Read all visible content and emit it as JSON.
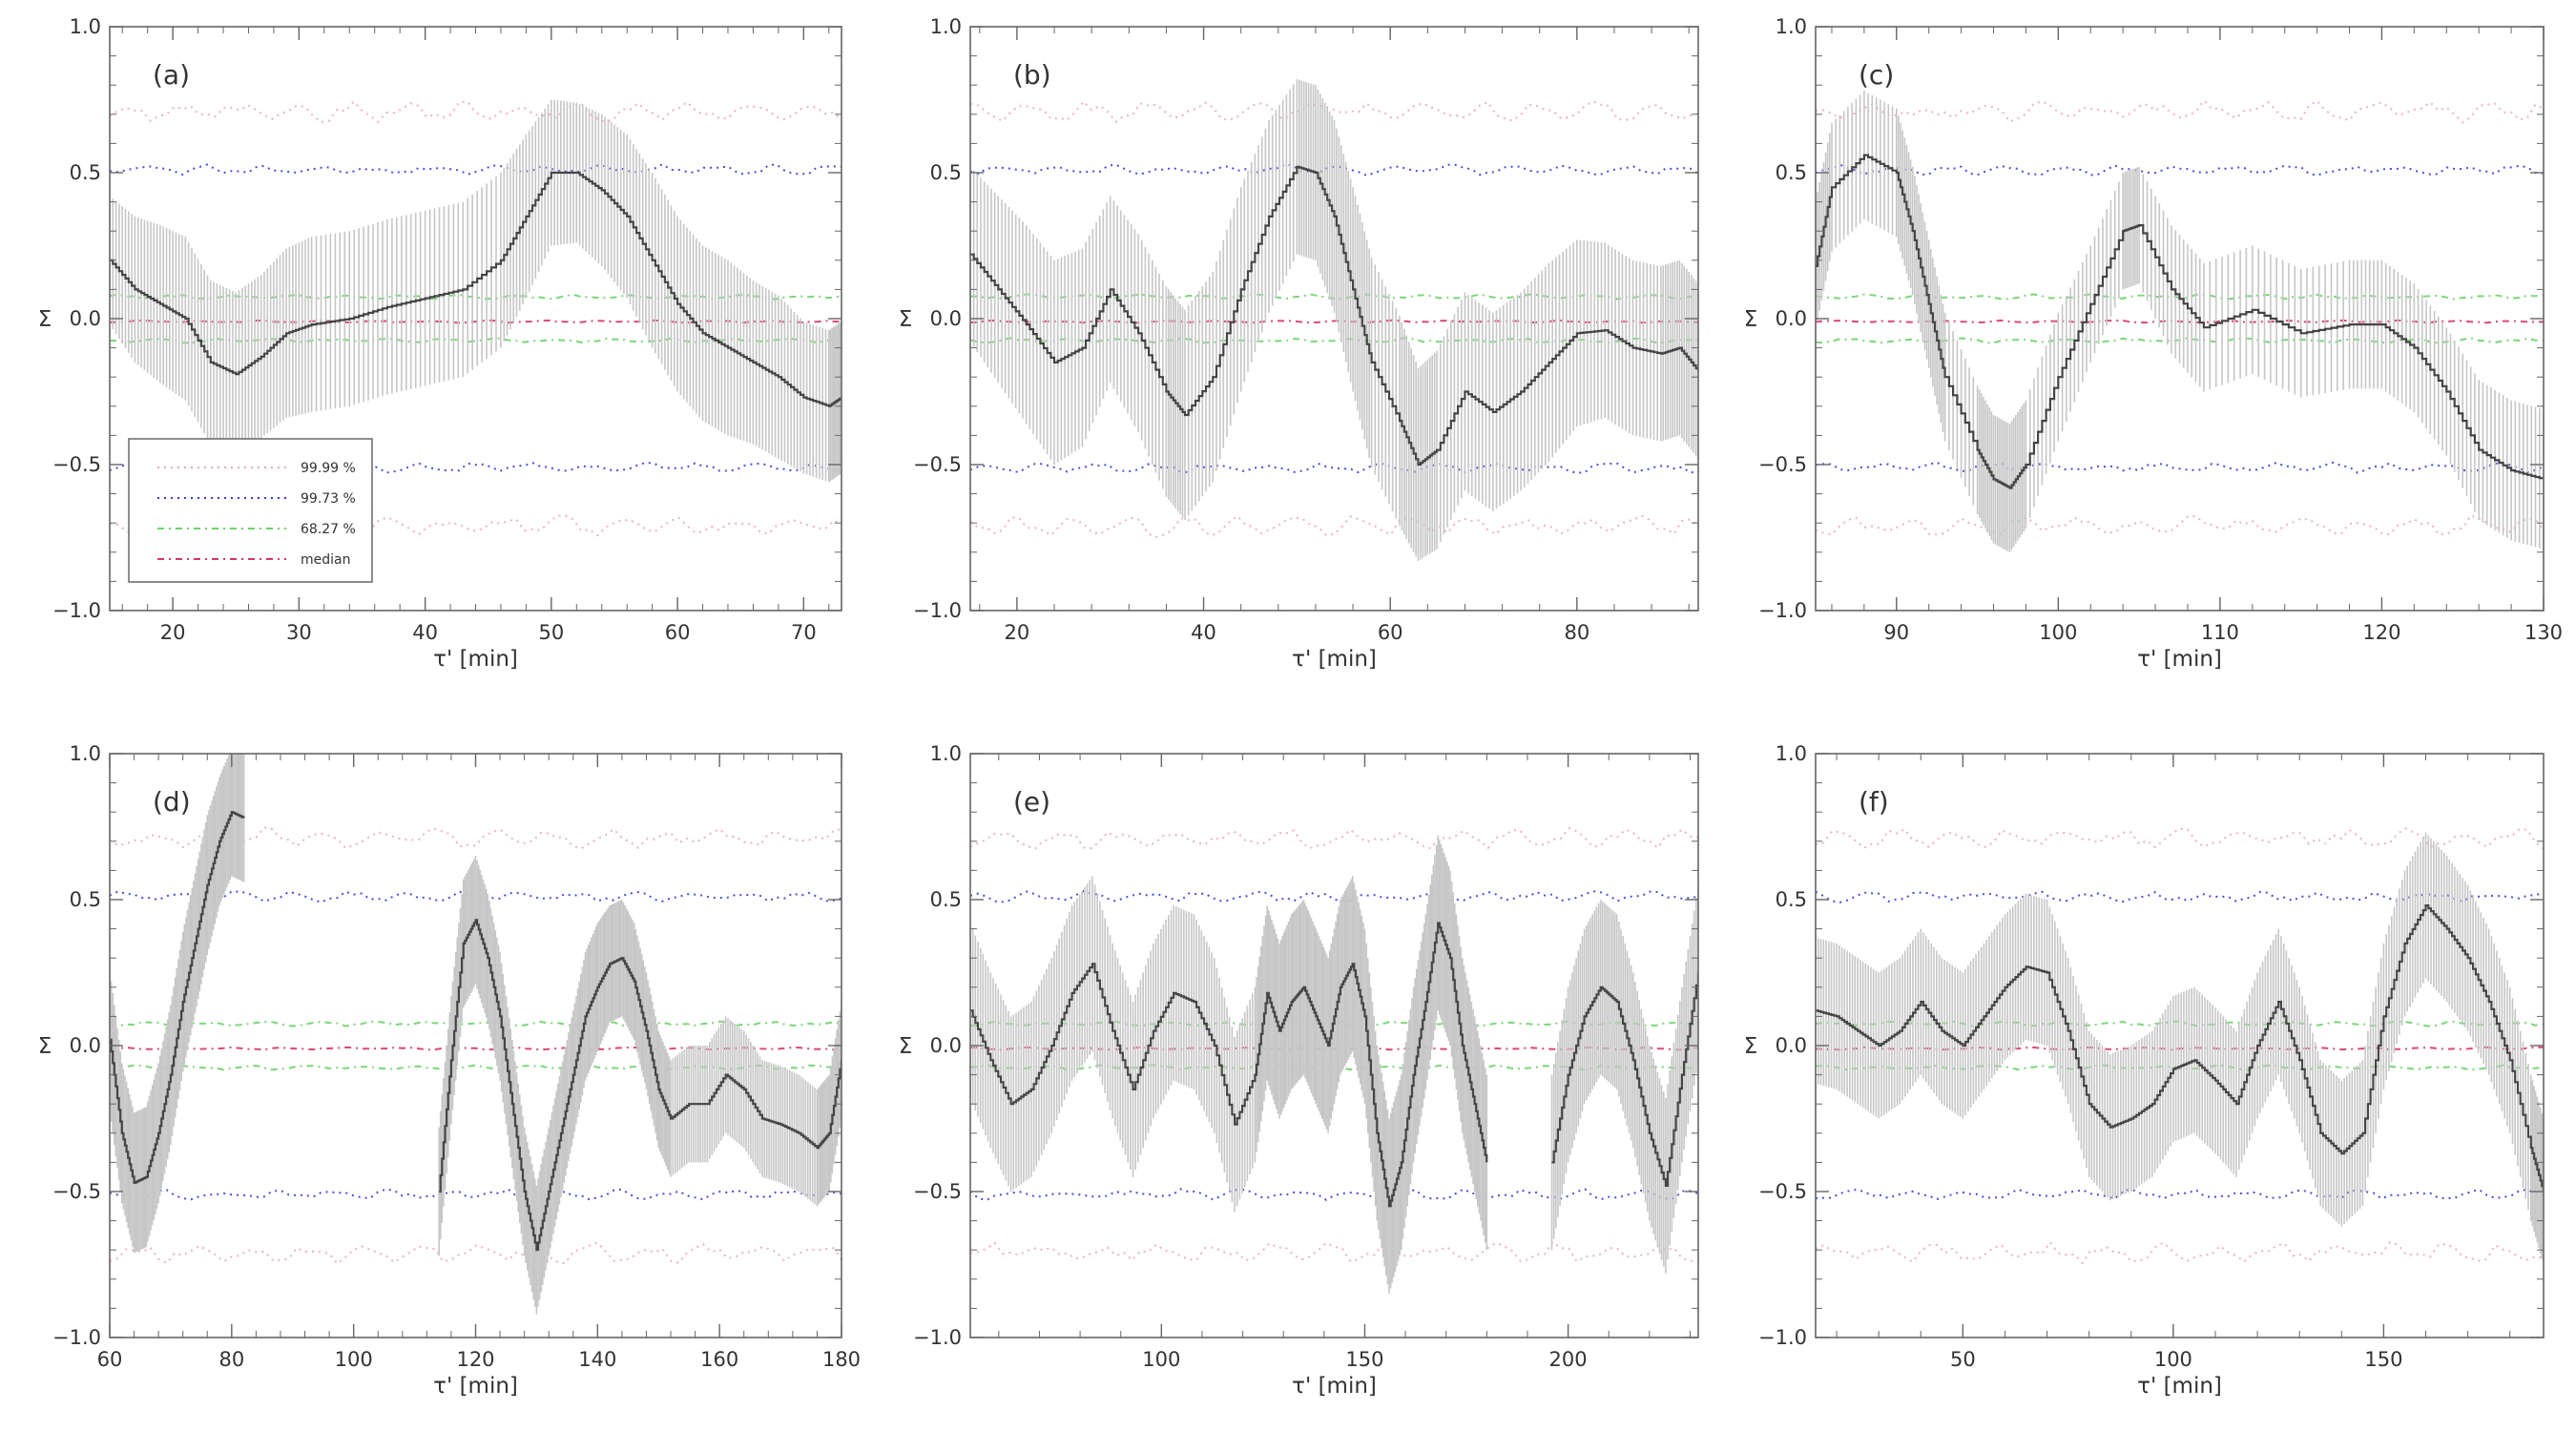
{
  "colors": {
    "signal": "#444444",
    "error_bars": "#c6c6c6",
    "conf_9999": "#e9a6cc",
    "conf_9973": "#3a3ad2",
    "conf_6827": "#6bd36b",
    "median": "#d9336a",
    "axis": "#666666"
  },
  "chart_data": [
    {
      "type": "line",
      "panel_label": "(a)",
      "xlabel": "τ' [min]",
      "ylabel": "Σ",
      "xlim": [
        15,
        73
      ],
      "ylim": [
        -1.0,
        1.0
      ],
      "xticks": [
        20,
        30,
        40,
        50,
        60,
        70
      ],
      "yticks": [
        -1.0,
        -0.5,
        0.0,
        0.5,
        1.0
      ],
      "ytick_labels": [
        "−1.0",
        "−0.5",
        "0.0",
        "0.5",
        "1.0"
      ],
      "legend": {
        "placement": "bottom-left",
        "entries": [
          "99.99 %",
          "99.73 %",
          "68.27 %",
          "median"
        ]
      },
      "confidence_levels": {
        "p9999": 0.71,
        "p9973": 0.51,
        "p6827": 0.075,
        "median": -0.01
      },
      "series": {
        "x": [
          15,
          17,
          19,
          21,
          23,
          25,
          27,
          29,
          31,
          34,
          37,
          40,
          43,
          46,
          48,
          50,
          52,
          54,
          56,
          58,
          60,
          62,
          64,
          66,
          68,
          70,
          72,
          73
        ],
        "y": [
          0.2,
          0.1,
          0.05,
          0.0,
          -0.15,
          -0.19,
          -0.13,
          -0.05,
          -0.02,
          0.0,
          0.04,
          0.07,
          0.1,
          0.2,
          0.35,
          0.5,
          0.5,
          0.44,
          0.35,
          0.2,
          0.05,
          -0.05,
          -0.1,
          -0.15,
          -0.2,
          -0.27,
          -0.3,
          -0.27
        ],
        "err": [
          0.22,
          0.25,
          0.27,
          0.28,
          0.28,
          0.28,
          0.28,
          0.29,
          0.3,
          0.3,
          0.3,
          0.3,
          0.3,
          0.3,
          0.28,
          0.25,
          0.24,
          0.26,
          0.28,
          0.3,
          0.3,
          0.3,
          0.3,
          0.28,
          0.28,
          0.26,
          0.26,
          0.26
        ]
      }
    },
    {
      "type": "line",
      "panel_label": "(b)",
      "xlabel": "τ' [min]",
      "ylabel": "Σ",
      "xlim": [
        15,
        93
      ],
      "ylim": [
        -1.0,
        1.0
      ],
      "xticks": [
        20,
        40,
        60,
        80
      ],
      "yticks": [
        -1.0,
        -0.5,
        0.0,
        0.5,
        1.0
      ],
      "ytick_labels": [
        "−1.0",
        "−0.5",
        "0.0",
        "0.5",
        "1.0"
      ],
      "confidence_levels": {
        "p9999": 0.71,
        "p9973": 0.51,
        "p6827": 0.075,
        "median": -0.01
      },
      "series": {
        "x": [
          15,
          18,
          21,
          24,
          27,
          30,
          33,
          36,
          38,
          41,
          44,
          47,
          50,
          52,
          54,
          56,
          58,
          61,
          63,
          65,
          68,
          71,
          74,
          77,
          80,
          83,
          86,
          89,
          91,
          93
        ],
        "y": [
          0.22,
          0.1,
          -0.02,
          -0.15,
          -0.1,
          0.1,
          -0.05,
          -0.25,
          -0.33,
          -0.2,
          0.1,
          0.35,
          0.52,
          0.5,
          0.35,
          0.1,
          -0.15,
          -0.35,
          -0.5,
          -0.45,
          -0.25,
          -0.32,
          -0.25,
          -0.15,
          -0.05,
          -0.04,
          -0.1,
          -0.12,
          -0.1,
          -0.18
        ],
        "err": [
          0.3,
          0.32,
          0.34,
          0.35,
          0.34,
          0.32,
          0.34,
          0.36,
          0.36,
          0.36,
          0.35,
          0.33,
          0.3,
          0.3,
          0.33,
          0.35,
          0.36,
          0.36,
          0.33,
          0.34,
          0.34,
          0.34,
          0.34,
          0.34,
          0.32,
          0.3,
          0.3,
          0.3,
          0.3,
          0.3
        ]
      }
    },
    {
      "type": "line",
      "panel_label": "(c)",
      "xlabel": "τ' [min]",
      "ylabel": "Σ",
      "xlim": [
        85,
        130
      ],
      "ylim": [
        -1.0,
        1.0
      ],
      "xticks": [
        90,
        100,
        110,
        120,
        130
      ],
      "yticks": [
        -1.0,
        -0.5,
        0.0,
        0.5,
        1.0
      ],
      "ytick_labels": [
        "−1.0",
        "−0.5",
        "0.0",
        "0.5",
        "1.0"
      ],
      "confidence_levels": {
        "p9999": 0.71,
        "p9973": 0.51,
        "p6827": 0.075,
        "median": -0.01
      },
      "series": {
        "x": [
          85,
          86,
          88,
          90,
          91,
          92,
          93,
          95,
          96,
          97,
          98,
          100,
          102,
          104,
          105,
          107,
          109,
          112,
          115,
          118,
          120,
          122,
          124,
          126,
          128,
          130
        ],
        "y": [
          0.18,
          0.45,
          0.56,
          0.5,
          0.3,
          0.05,
          -0.2,
          -0.45,
          -0.55,
          -0.58,
          -0.5,
          -0.2,
          0.05,
          0.3,
          0.32,
          0.1,
          -0.03,
          0.03,
          -0.05,
          -0.02,
          -0.02,
          -0.1,
          -0.25,
          -0.45,
          -0.52,
          -0.55
        ],
        "err": [
          0.22,
          0.22,
          0.22,
          0.22,
          0.22,
          0.22,
          0.22,
          0.22,
          0.22,
          0.22,
          0.22,
          0.22,
          0.2,
          0.2,
          0.2,
          0.22,
          0.22,
          0.22,
          0.22,
          0.22,
          0.22,
          0.22,
          0.22,
          0.24,
          0.24,
          0.24
        ]
      }
    },
    {
      "type": "line",
      "panel_label": "(d)",
      "xlabel": "τ' [min]",
      "ylabel": "Σ",
      "xlim": [
        60,
        180
      ],
      "ylim": [
        -1.0,
        1.0
      ],
      "xticks": [
        60,
        80,
        100,
        120,
        140,
        160,
        180
      ],
      "yticks": [
        -1.0,
        -0.5,
        0.0,
        0.5,
        1.0
      ],
      "ytick_labels": [
        "−1.0",
        "−0.5",
        "0.0",
        "0.5",
        "1.0"
      ],
      "confidence_levels": {
        "p9999": 0.71,
        "p9973": 0.51,
        "p6827": 0.075,
        "median": -0.01
      },
      "series": [
        {
          "x": [
            60,
            62,
            64,
            66,
            68,
            70,
            72,
            74,
            76,
            78,
            80,
            82
          ],
          "y": [
            0.02,
            -0.3,
            -0.47,
            -0.45,
            -0.3,
            -0.1,
            0.15,
            0.35,
            0.55,
            0.7,
            0.8,
            0.78
          ],
          "err": [
            0.24,
            0.24,
            0.24,
            0.24,
            0.24,
            0.24,
            0.24,
            0.24,
            0.24,
            0.22,
            0.22,
            0.22
          ]
        },
        {
          "x": [
            114,
            116,
            118,
            120,
            122,
            124,
            126,
            128,
            130,
            132,
            134,
            136,
            138,
            140,
            142,
            144,
            146,
            148,
            150,
            152,
            155,
            158,
            161,
            164,
            167,
            170,
            173,
            176,
            178,
            180
          ],
          "y": [
            -0.5,
            -0.05,
            0.35,
            0.43,
            0.3,
            0.1,
            -0.2,
            -0.5,
            -0.7,
            -0.5,
            -0.3,
            -0.1,
            0.1,
            0.2,
            0.28,
            0.3,
            0.22,
            0.05,
            -0.15,
            -0.25,
            -0.2,
            -0.2,
            -0.1,
            -0.15,
            -0.25,
            -0.27,
            -0.3,
            -0.35,
            -0.3,
            -0.05
          ],
          "err": [
            0.22,
            0.22,
            0.22,
            0.22,
            0.22,
            0.22,
            0.22,
            0.22,
            0.22,
            0.22,
            0.22,
            0.22,
            0.22,
            0.22,
            0.2,
            0.2,
            0.2,
            0.2,
            0.2,
            0.2,
            0.2,
            0.2,
            0.2,
            0.2,
            0.2,
            0.2,
            0.2,
            0.2,
            0.2,
            0.2
          ]
        }
      ]
    },
    {
      "type": "line",
      "panel_label": "(e)",
      "xlabel": "τ' [min]",
      "ylabel": "Σ",
      "xlim": [
        53,
        232
      ],
      "ylim": [
        -1.0,
        1.0
      ],
      "xticks": [
        100,
        150,
        200
      ],
      "yticks": [
        -1.0,
        -0.5,
        0.0,
        0.5,
        1.0
      ],
      "ytick_labels": [
        "−1.0",
        "−0.5",
        "0.0",
        "0.5",
        "1.0"
      ],
      "confidence_levels": {
        "p9999": 0.71,
        "p9973": 0.51,
        "p6827": 0.075,
        "median": -0.01
      },
      "series": [
        {
          "x": [
            53,
            58,
            63,
            68,
            73,
            78,
            83,
            88,
            93,
            98,
            103,
            108,
            113,
            118,
            123,
            126,
            129,
            132,
            135,
            138,
            141,
            144,
            147,
            150,
            153,
            156,
            159,
            162,
            165,
            168,
            171,
            174,
            177,
            180
          ],
          "y": [
            0.12,
            -0.05,
            -0.2,
            -0.15,
            0.0,
            0.18,
            0.28,
            0.05,
            -0.15,
            0.05,
            0.18,
            0.15,
            0.0,
            -0.27,
            -0.1,
            0.18,
            0.05,
            0.15,
            0.2,
            0.1,
            0.0,
            0.2,
            0.28,
            0.1,
            -0.3,
            -0.55,
            -0.4,
            -0.1,
            0.15,
            0.42,
            0.3,
            0.0,
            -0.2,
            -0.4
          ],
          "err": [
            0.3,
            0.3,
            0.3,
            0.3,
            0.3,
            0.3,
            0.3,
            0.3,
            0.3,
            0.3,
            0.3,
            0.3,
            0.3,
            0.3,
            0.3,
            0.3,
            0.3,
            0.3,
            0.3,
            0.3,
            0.3,
            0.3,
            0.3,
            0.3,
            0.3,
            0.3,
            0.3,
            0.3,
            0.3,
            0.3,
            0.3,
            0.3,
            0.3,
            0.3
          ]
        },
        {
          "x": [
            196,
            200,
            204,
            208,
            212,
            216,
            220,
            224,
            228,
            232
          ],
          "y": [
            -0.4,
            -0.1,
            0.1,
            0.2,
            0.15,
            -0.05,
            -0.3,
            -0.48,
            -0.1,
            0.25
          ],
          "err": [
            0.3,
            0.3,
            0.3,
            0.3,
            0.3,
            0.3,
            0.3,
            0.3,
            0.3,
            0.3
          ]
        }
      ]
    },
    {
      "type": "line",
      "panel_label": "(f)",
      "xlabel": "τ' [min]",
      "ylabel": "Σ",
      "xlim": [
        15,
        188
      ],
      "ylim": [
        -1.0,
        1.0
      ],
      "xticks": [
        50,
        100,
        150
      ],
      "yticks": [
        -1.0,
        -0.5,
        0.0,
        0.5,
        1.0
      ],
      "ytick_labels": [
        "−1.0",
        "−0.5",
        "0.0",
        "0.5",
        "1.0"
      ],
      "confidence_levels": {
        "p9999": 0.71,
        "p9973": 0.51,
        "p6827": 0.075,
        "median": -0.01
      },
      "series": {
        "x": [
          15,
          20,
          25,
          30,
          35,
          40,
          45,
          50,
          55,
          60,
          65,
          70,
          75,
          80,
          85,
          90,
          95,
          100,
          105,
          110,
          115,
          120,
          125,
          130,
          135,
          140,
          145,
          150,
          155,
          160,
          165,
          170,
          175,
          180,
          185,
          188
        ],
        "y": [
          0.12,
          0.1,
          0.05,
          0.0,
          0.05,
          0.15,
          0.05,
          0.0,
          0.1,
          0.2,
          0.27,
          0.25,
          0.05,
          -0.2,
          -0.28,
          -0.25,
          -0.2,
          -0.08,
          -0.05,
          -0.12,
          -0.2,
          0.0,
          0.15,
          -0.05,
          -0.3,
          -0.37,
          -0.3,
          0.1,
          0.35,
          0.48,
          0.4,
          0.3,
          0.15,
          -0.05,
          -0.35,
          -0.5
        ],
        "err": [
          0.25,
          0.25,
          0.25,
          0.25,
          0.25,
          0.25,
          0.25,
          0.25,
          0.25,
          0.25,
          0.25,
          0.25,
          0.25,
          0.25,
          0.25,
          0.25,
          0.25,
          0.25,
          0.25,
          0.25,
          0.25,
          0.25,
          0.25,
          0.25,
          0.25,
          0.25,
          0.25,
          0.25,
          0.25,
          0.25,
          0.25,
          0.25,
          0.25,
          0.25,
          0.25,
          0.25
        ]
      }
    }
  ]
}
